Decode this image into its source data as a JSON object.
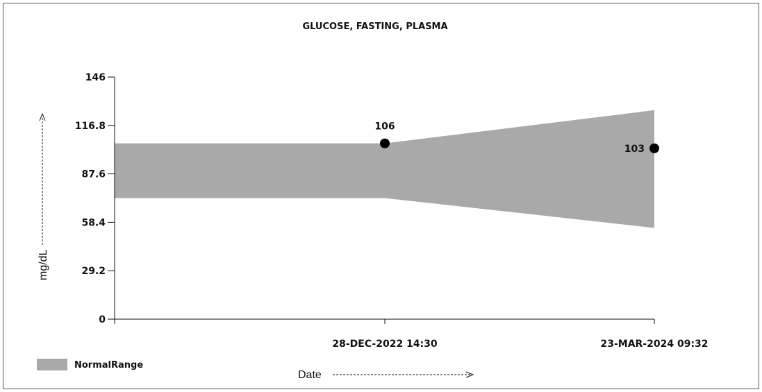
{
  "chart_data": {
    "type": "line",
    "title": "GLUCOSE, FASTING, PLASMA",
    "xlabel": "Date",
    "ylabel": "mg/dL",
    "ylim": [
      0,
      146
    ],
    "yticks": [
      "0",
      "29.2",
      "58.4",
      "87.6",
      "116.8",
      "146"
    ],
    "ytick_values": [
      0,
      29.2,
      58.4,
      87.6,
      116.8,
      146
    ],
    "categories": [
      "28-DEC-2022 14:30",
      "23-MAR-2024 09:32"
    ],
    "series": [
      {
        "values": [
          106,
          103
        ],
        "labels": [
          "106",
          "103"
        ],
        "color": "#000000"
      }
    ],
    "normal_range": {
      "name": "NormalRange",
      "color": "#a9a9a9",
      "points": [
        {
          "x": "axis-start",
          "low": 73,
          "high": 106
        },
        {
          "x": "28-DEC-2022 14:30",
          "low": 73,
          "high": 106
        },
        {
          "x": "23-MAR-2024 09:32",
          "low": 55,
          "high": 126
        }
      ]
    },
    "legend": {
      "position": "bottom-left",
      "entries": [
        "NormalRange"
      ]
    },
    "grid": false
  }
}
